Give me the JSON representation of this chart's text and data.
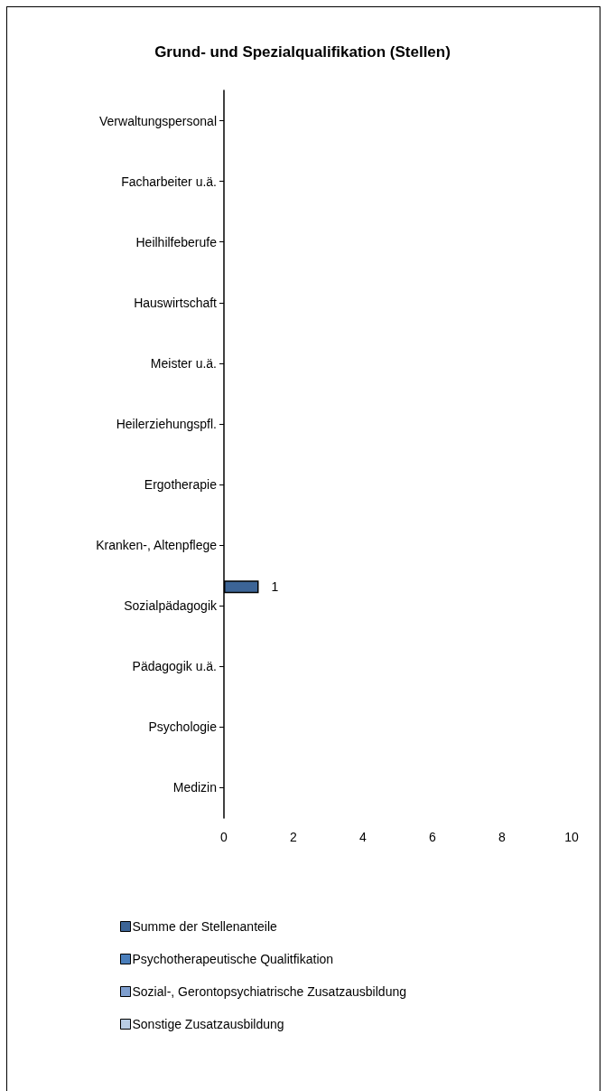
{
  "chart_data": {
    "type": "bar",
    "orientation": "horizontal",
    "title": "Grund- und Spezialqualifikation (Stellen)",
    "categories": [
      "Verwaltungspersonal",
      "Facharbeiter u.ä.",
      "Heilhilfeberufe",
      "Hauswirtschaft",
      "Meister u.ä.",
      "Heilerziehungspfl.",
      "Ergotherapie",
      "Kranken-, Altenpflege",
      "Sozialpädagogik",
      "Pädagogik u.ä.",
      "Psychologie",
      "Medizin"
    ],
    "series": [
      {
        "name": "Summe der Stellenanteile",
        "color": "#3c6496",
        "values": [
          null,
          null,
          null,
          null,
          null,
          null,
          null,
          null,
          1,
          null,
          null,
          null
        ],
        "value_labels": [
          null,
          null,
          null,
          null,
          null,
          null,
          null,
          null,
          "1",
          null,
          null,
          null
        ]
      },
      {
        "name": "Psychotherapeutische Qualitfikation",
        "color": "#4a7ebb",
        "values": [
          null,
          null,
          null,
          null,
          null,
          null,
          null,
          null,
          null,
          null,
          null,
          null
        ]
      },
      {
        "name": "Sozial-, Gerontopsychiatrische Zusatzausbildung",
        "color": "#7f9fcf",
        "values": [
          null,
          null,
          null,
          null,
          null,
          null,
          null,
          null,
          null,
          null,
          null,
          null
        ]
      },
      {
        "name": "Sonstige Zusatzausbildung",
        "color": "#b9cde5",
        "values": [
          null,
          null,
          null,
          null,
          null,
          null,
          null,
          null,
          null,
          null,
          null,
          null
        ]
      }
    ],
    "xlim": [
      0,
      10
    ],
    "xticks": [
      0,
      2,
      4,
      6,
      8,
      10
    ],
    "grid": false,
    "legend": "bottom"
  }
}
